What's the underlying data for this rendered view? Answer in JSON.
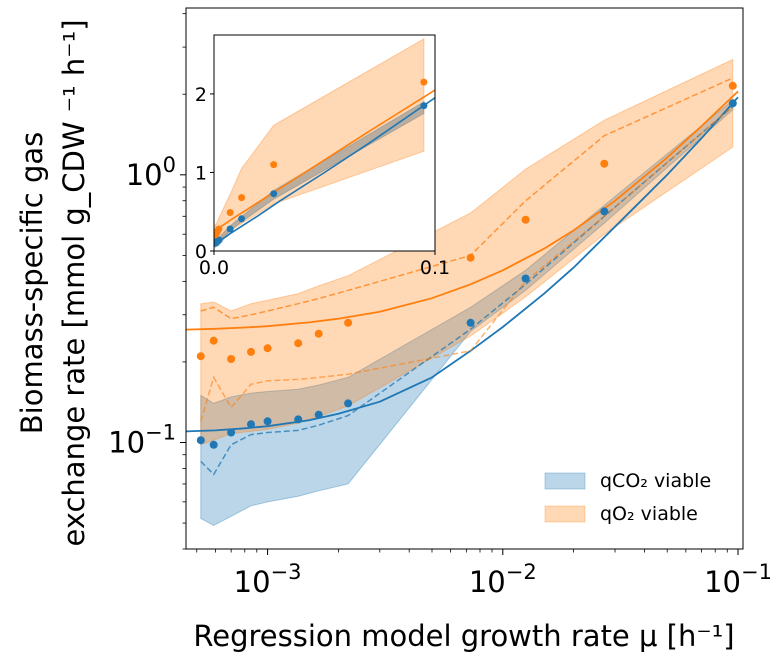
{
  "chart_data": {
    "type": "line",
    "x_scale": "log",
    "y_scale": "log",
    "xlabel": "Regression model growth rate μ [h⁻¹]",
    "ylabel": {
      "line1": "Biomass-specific gas",
      "line2": "exchange rate [mmol g_CDW ⁻¹ h⁻¹]"
    },
    "xlim": [
      0.00045,
      0.105
    ],
    "ylim": [
      0.04,
      4.2
    ],
    "xticks": [
      {
        "value": 0.001,
        "base": "10",
        "exp": "−3"
      },
      {
        "value": 0.01,
        "base": "10",
        "exp": "−2"
      },
      {
        "value": 0.1,
        "base": "10",
        "exp": "−1"
      }
    ],
    "yticks": [
      {
        "value": 0.1,
        "base": "10",
        "exp": "−1"
      },
      {
        "value": 1,
        "base": "10",
        "exp": "0"
      }
    ],
    "legend": {
      "position": "lower-right",
      "entries": [
        {
          "label": "qCO₂ viable",
          "color": "#1f77b4"
        },
        {
          "label": "qO₂ viable",
          "color": "#ff7f0e"
        }
      ]
    },
    "series": [
      {
        "name": "qCO₂ viable",
        "color": "#1f77b4",
        "points": {
          "x": [
            0.00052,
            0.00059,
            0.0007,
            0.00085,
            0.001,
            0.00135,
            0.00165,
            0.0022,
            0.0073,
            0.0125,
            0.027,
            0.095
          ],
          "y": [
            0.102,
            0.098,
            0.109,
            0.117,
            0.12,
            0.122,
            0.127,
            0.14,
            0.28,
            0.41,
            0.73,
            1.85
          ]
        },
        "fit": {
          "x": [
            0.00045,
            0.0006,
            0.0008,
            0.001,
            0.0015,
            0.002,
            0.003,
            0.005,
            0.0073,
            0.01,
            0.015,
            0.02,
            0.03,
            0.05,
            0.07,
            0.1
          ],
          "y": [
            0.11,
            0.111,
            0.113,
            0.115,
            0.121,
            0.128,
            0.142,
            0.175,
            0.22,
            0.27,
            0.36,
            0.45,
            0.64,
            1.0,
            1.37,
            1.95
          ]
        },
        "dashed": {
          "x": [
            0.00052,
            0.00059,
            0.0007,
            0.00085,
            0.001,
            0.00135,
            0.00165,
            0.0022,
            0.0073,
            0.0125,
            0.027,
            0.095
          ],
          "y": [
            0.085,
            0.076,
            0.098,
            0.107,
            0.109,
            0.111,
            0.116,
            0.126,
            0.265,
            0.39,
            0.7,
            1.8
          ]
        },
        "band": {
          "x": [
            0.00052,
            0.00059,
            0.0007,
            0.00085,
            0.001,
            0.00135,
            0.00165,
            0.0022,
            0.0073,
            0.0125,
            0.027,
            0.095
          ],
          "lower": [
            0.052,
            0.049,
            0.053,
            0.058,
            0.06,
            0.063,
            0.066,
            0.07,
            0.26,
            0.37,
            0.66,
            1.75
          ],
          "upper": [
            0.15,
            0.14,
            0.148,
            0.153,
            0.155,
            0.158,
            0.164,
            0.175,
            0.32,
            0.44,
            0.77,
            1.9
          ]
        }
      },
      {
        "name": "qO₂ viable",
        "color": "#ff7f0e",
        "points": {
          "x": [
            0.00052,
            0.00059,
            0.0007,
            0.00085,
            0.001,
            0.00135,
            0.00165,
            0.0022,
            0.0073,
            0.0125,
            0.027,
            0.095
          ],
          "y": [
            0.21,
            0.24,
            0.205,
            0.218,
            0.225,
            0.235,
            0.255,
            0.28,
            0.49,
            0.68,
            1.1,
            2.15
          ]
        },
        "fit": {
          "x": [
            0.00045,
            0.0006,
            0.0008,
            0.001,
            0.0015,
            0.002,
            0.003,
            0.005,
            0.0073,
            0.01,
            0.015,
            0.02,
            0.03,
            0.05,
            0.07,
            0.1
          ],
          "y": [
            0.264,
            0.266,
            0.269,
            0.272,
            0.281,
            0.29,
            0.308,
            0.346,
            0.39,
            0.44,
            0.53,
            0.62,
            0.8,
            1.16,
            1.52,
            2.05
          ]
        },
        "dashed": {
          "x": [
            0.00052,
            0.00059,
            0.0007,
            0.00085,
            0.001,
            0.00135,
            0.00165,
            0.0022,
            0.0073,
            0.0125,
            0.027,
            0.095
          ],
          "y": [
            0.31,
            0.32,
            0.29,
            0.3,
            0.31,
            0.33,
            0.345,
            0.37,
            0.5,
            0.8,
            1.4,
            2.3
          ]
        },
        "dashed2": {
          "x": [
            0.00052,
            0.00059,
            0.0007,
            0.00085,
            0.001,
            0.00135,
            0.00165,
            0.0022,
            0.0073,
            0.0125,
            0.027,
            0.095
          ],
          "y": [
            0.12,
            0.175,
            0.135,
            0.165,
            0.17,
            0.172,
            0.175,
            0.18,
            0.22,
            0.4,
            0.7,
            1.8
          ]
        },
        "band": {
          "x": [
            0.00052,
            0.00059,
            0.0007,
            0.00085,
            0.001,
            0.00135,
            0.00165,
            0.0022,
            0.0073,
            0.0125,
            0.027,
            0.095
          ],
          "lower": [
            0.098,
            0.102,
            0.108,
            0.11,
            0.112,
            0.118,
            0.125,
            0.137,
            0.25,
            0.35,
            0.6,
            1.27
          ],
          "upper": [
            0.33,
            0.335,
            0.31,
            0.33,
            0.34,
            0.36,
            0.385,
            0.42,
            0.72,
            1.05,
            1.6,
            2.7
          ]
        }
      }
    ],
    "inset": {
      "x_scale": "linear",
      "y_scale": "linear",
      "xlim": [
        0,
        0.1
      ],
      "ylim": [
        0,
        2.75
      ],
      "xticks": [
        {
          "value": 0,
          "label": "0.0"
        },
        {
          "value": 0.1,
          "label": "0.1"
        }
      ],
      "yticks": [
        {
          "value": 0,
          "label": "0"
        },
        {
          "value": 1,
          "label": "1"
        },
        {
          "value": 2,
          "label": "2"
        }
      ]
    }
  }
}
